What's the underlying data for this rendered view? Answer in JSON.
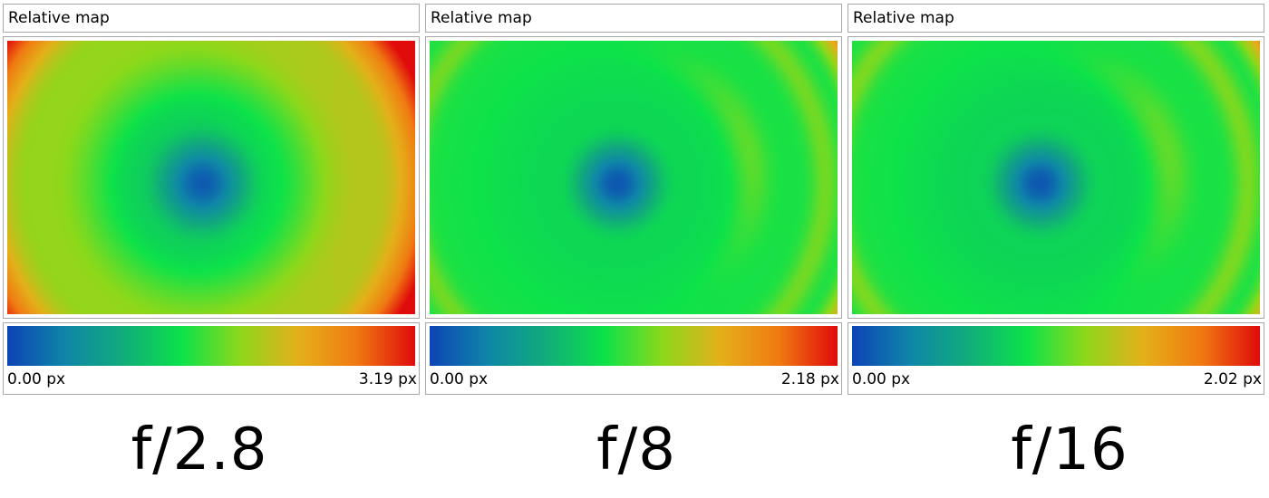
{
  "colors": {
    "colormap": [
      "#0d45b5",
      "#0f86a8",
      "#11ad7a",
      "#0de24a",
      "#8ed81a",
      "#e4b01a",
      "#f07a12",
      "#e00c0c"
    ]
  },
  "panels": [
    {
      "title": "Relative map",
      "caption": "f/2.8",
      "chart_data": {
        "type": "heatmap",
        "description_values": "relative distortion map",
        "scale_min_label": "0.00 px",
        "scale_max_label": "3.19 px",
        "scale_min": 0.0,
        "scale_max": 3.19
      }
    },
    {
      "title": "Relative map",
      "caption": "f/8",
      "chart_data": {
        "type": "heatmap",
        "scale_min_label": "0.00 px",
        "scale_max_label": "2.18 px",
        "scale_min": 0.0,
        "scale_max": 2.18
      }
    },
    {
      "title": "Relative map",
      "caption": "f/16",
      "chart_data": {
        "type": "heatmap",
        "scale_min_label": "0.00 px",
        "scale_max_label": "2.02 px",
        "scale_min": 0.0,
        "scale_max": 2.02
      }
    }
  ]
}
